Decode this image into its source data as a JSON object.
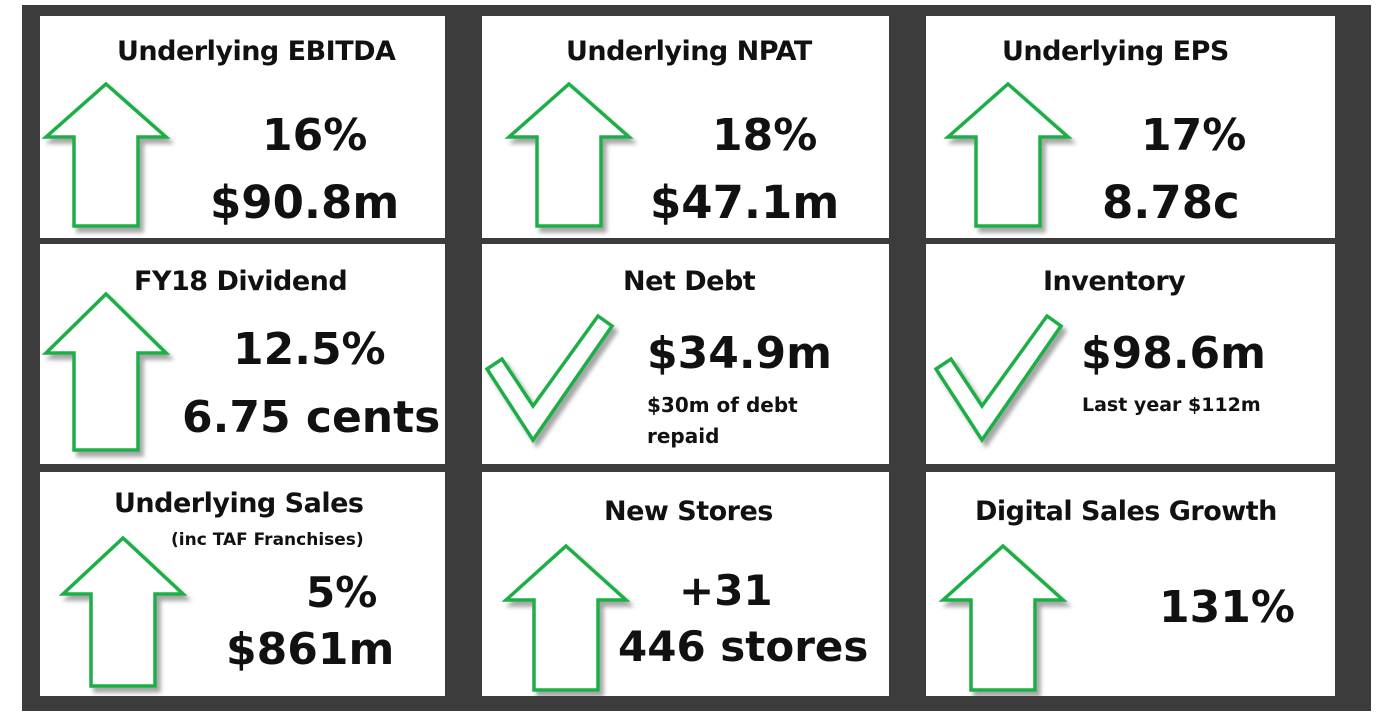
{
  "colors": {
    "frame": "#3c3c3c",
    "card": "#ffffff",
    "icon_stroke": "#1fae46",
    "text": "#111111"
  },
  "cards": [
    {
      "title": "Underlying EBITDA",
      "icon": "up-arrow-icon",
      "pct": "16%",
      "amount": "$90.8m"
    },
    {
      "title": "Underlying NPAT",
      "icon": "up-arrow-icon",
      "pct": "18%",
      "amount": "$47.1m"
    },
    {
      "title": "Underlying EPS",
      "icon": "up-arrow-icon",
      "pct": "17%",
      "amount": "8.78c"
    },
    {
      "title": "FY18 Dividend",
      "icon": "up-arrow-icon",
      "pct": "12.5%",
      "amount": "6.75 cents"
    },
    {
      "title": "Net Debt",
      "icon": "checkmark-icon",
      "amount": "$34.9m",
      "note": "$30m of debt repaid"
    },
    {
      "title": "Inventory",
      "icon": "checkmark-icon",
      "amount": "$98.6m",
      "note": "Last year $112m"
    },
    {
      "title": "Underlying Sales",
      "subtitle": "(inc TAF Franchises)",
      "icon": "up-arrow-icon",
      "pct": "5%",
      "amount": "$861m"
    },
    {
      "title": "New Stores",
      "icon": "up-arrow-icon",
      "pct": "+31",
      "amount": "446 stores"
    },
    {
      "title": "Digital Sales Growth",
      "icon": "up-arrow-icon",
      "pct": "131%"
    }
  ]
}
